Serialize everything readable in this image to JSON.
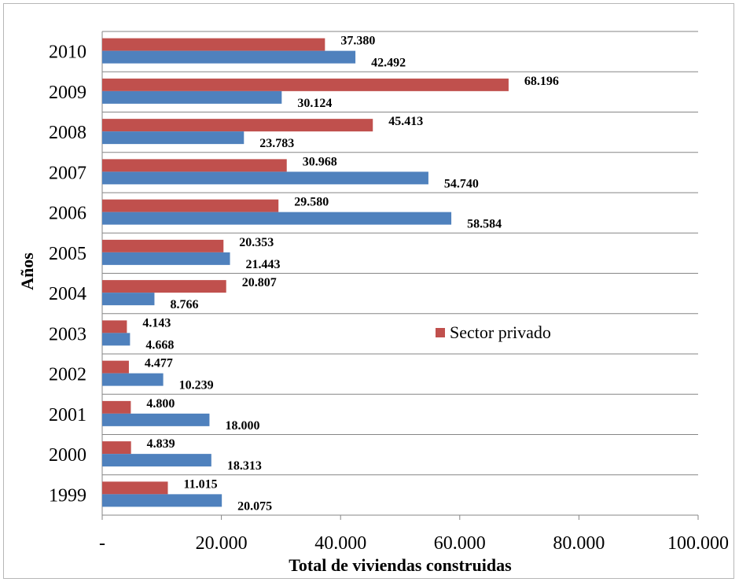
{
  "chart_data": {
    "type": "bar",
    "orientation": "horizontal",
    "categories": [
      "2010",
      "2009",
      "2008",
      "2007",
      "2006",
      "2005",
      "2004",
      "2003",
      "2002",
      "2001",
      "2000",
      "1999"
    ],
    "series": [
      {
        "name": "Sector privado",
        "color": "#C0504D",
        "values": [
          37380,
          68196,
          45413,
          30968,
          29580,
          20353,
          20807,
          4143,
          4477,
          4800,
          4839,
          11015
        ],
        "labels": [
          "37.380",
          "68.196",
          "45.413",
          "30.968",
          "29.580",
          "20.353",
          "20.807",
          "4.143",
          "4.477",
          "4.800",
          "4.839",
          "11.015"
        ]
      },
      {
        "color": "#4F81BD",
        "values": [
          42492,
          30124,
          23783,
          54740,
          58584,
          21443,
          8766,
          4668,
          10239,
          18000,
          18313,
          20075
        ],
        "labels": [
          "42.492",
          "30.124",
          "23.783",
          "54.740",
          "58.584",
          "21.443",
          "8.766",
          "4.668",
          "10.239",
          "18.000",
          "18.313",
          "20.075"
        ]
      }
    ],
    "xlabel": "Total de viviendas construidas",
    "ylabel": "Años",
    "xlim": [
      0,
      100000
    ],
    "x_ticks": [
      {
        "value": 0,
        "label": "-"
      },
      {
        "value": 20000,
        "label": "20.000"
      },
      {
        "value": 40000,
        "label": "40.000"
      },
      {
        "value": 60000,
        "label": "60.000"
      },
      {
        "value": 80000,
        "label": "80.000"
      },
      {
        "value": 100000,
        "label": "100.000"
      }
    ],
    "grid": "horizontal",
    "legend_position": "middle-right"
  }
}
